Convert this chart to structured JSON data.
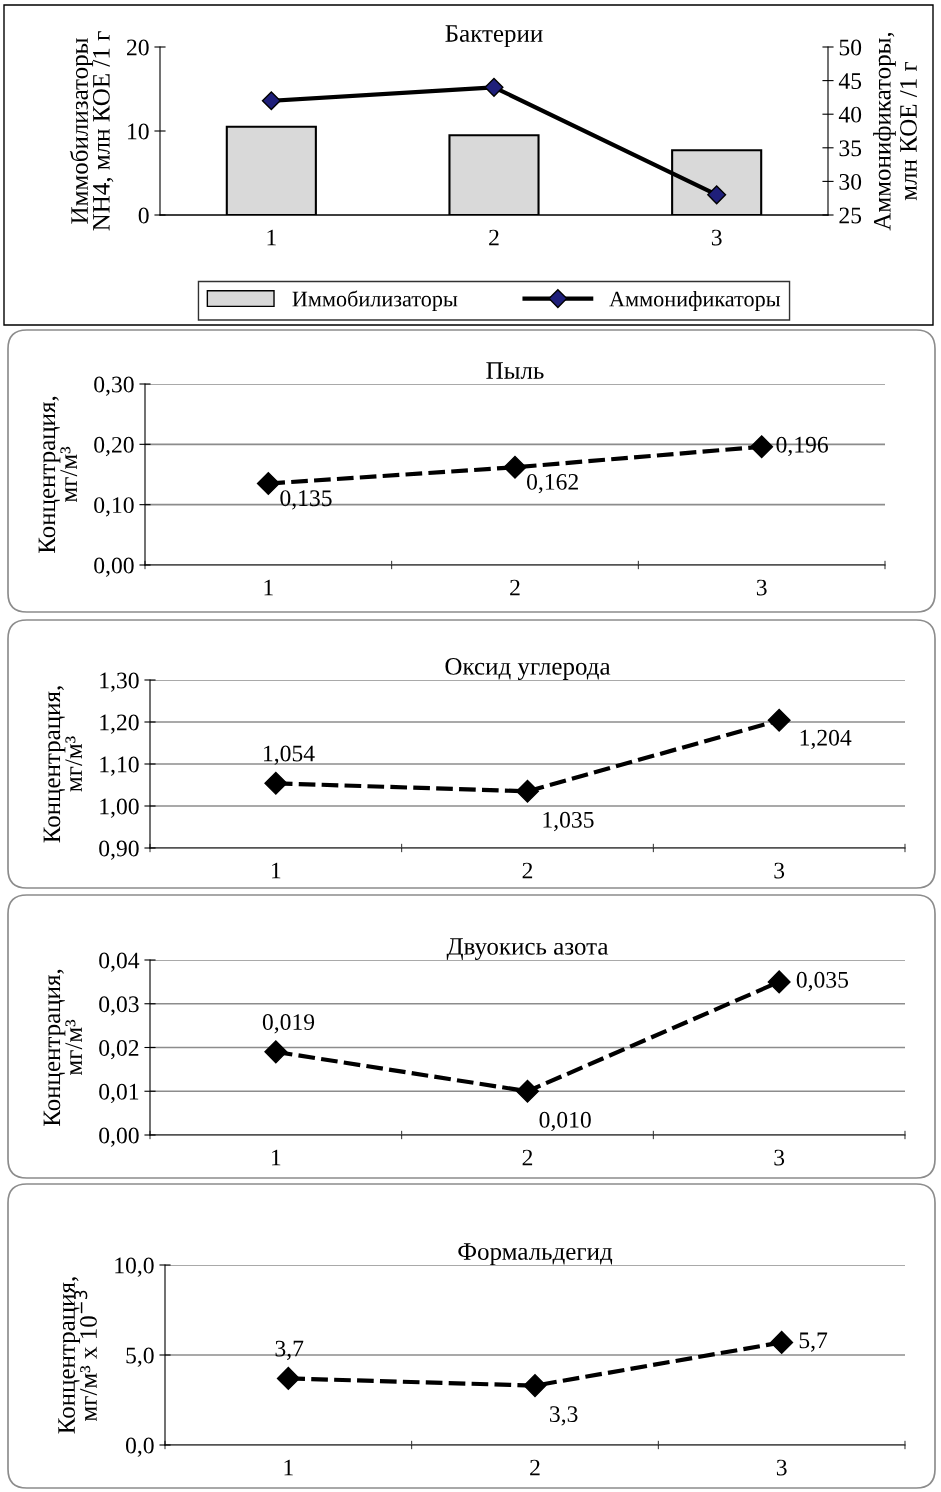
{
  "chart_data": [
    {
      "type": "bar",
      "title": "Бактерии",
      "ylabel": "Иммобилизаторы\nNH4, млн КОЕ /1 г",
      "y2label": "Аммонификаторы,\nмлн КОЕ /1 г",
      "categories": [
        "1",
        "2",
        "3"
      ],
      "series": [
        {
          "name": "Иммобилизаторы",
          "type": "bar",
          "color": "#d9d9d9",
          "values": [
            10.5,
            9.5,
            7.7
          ]
        },
        {
          "name": "Аммонификаторы",
          "type": "line",
          "axis": "y2",
          "color": "#000000",
          "marker": "diamond",
          "values": [
            42,
            44,
            28
          ]
        }
      ],
      "ylim": [
        0,
        20
      ],
      "yticks": [
        0,
        10,
        20
      ],
      "y2lim": [
        25,
        50
      ],
      "y2ticks": [
        25,
        30,
        35,
        40,
        45,
        50
      ],
      "grid": false,
      "legend": "bottom"
    },
    {
      "type": "line",
      "title": "Пыль",
      "ylabel": "Концентрация,\nмг/м³",
      "categories": [
        "1",
        "2",
        "3"
      ],
      "series": [
        {
          "color": "#000000",
          "values": [
            0.135,
            0.162,
            0.196
          ],
          "value_labels": [
            "0,135",
            "0,162",
            "0,196"
          ]
        }
      ],
      "ylim": [
        0,
        0.3
      ],
      "yticks": [
        {
          "value": 0,
          "label": "0,00"
        },
        {
          "value": 0.1,
          "label": "0,10"
        },
        {
          "value": 0.2,
          "label": "0,20"
        },
        {
          "value": 0.3,
          "label": "0,30"
        }
      ],
      "grid": "y",
      "marker": "diamond",
      "line_style": "dashed"
    },
    {
      "type": "line",
      "title": "Оксид углерода",
      "ylabel": "Концентрация,\nмг/м³",
      "categories": [
        "1",
        "2",
        "3"
      ],
      "series": [
        {
          "color": "#000000",
          "values": [
            1.054,
            1.035,
            1.204
          ],
          "value_labels": [
            "1,054",
            "1,035",
            "1,204"
          ]
        }
      ],
      "ylim": [
        0.9,
        1.3
      ],
      "yticks": [
        {
          "value": 0.9,
          "label": "0,90"
        },
        {
          "value": 1.0,
          "label": "1,00"
        },
        {
          "value": 1.1,
          "label": "1,10"
        },
        {
          "value": 1.2,
          "label": "1,20"
        },
        {
          "value": 1.3,
          "label": "1,30"
        }
      ],
      "grid": "y",
      "marker": "diamond",
      "line_style": "dashed"
    },
    {
      "type": "line",
      "title": "Двуокись азота",
      "ylabel": "Концентрация,\nмг/м³",
      "categories": [
        "1",
        "2",
        "3"
      ],
      "series": [
        {
          "color": "#000000",
          "values": [
            0.019,
            0.01,
            0.035
          ],
          "value_labels": [
            "0,019",
            "0,010",
            "0,035"
          ]
        }
      ],
      "ylim": [
        0,
        0.04
      ],
      "yticks": [
        {
          "value": 0,
          "label": "0,00"
        },
        {
          "value": 0.01,
          "label": "0,01"
        },
        {
          "value": 0.02,
          "label": "0,02"
        },
        {
          "value": 0.03,
          "label": "0,03"
        },
        {
          "value": 0.04,
          "label": "0,04"
        }
      ],
      "grid": "y",
      "marker": "diamond",
      "line_style": "dashed"
    },
    {
      "type": "line",
      "title": "Формальдегид",
      "ylabel": "Концентрация,\nмг/м³ x 10$^{−3}$",
      "categories": [
        "1",
        "2",
        "3"
      ],
      "series": [
        {
          "color": "#000000",
          "values": [
            3.7,
            3.3,
            5.7
          ],
          "value_labels": [
            "3,7",
            "3,3",
            "5,7"
          ]
        }
      ],
      "ylim": [
        0,
        10
      ],
      "yticks": [
        {
          "value": 0,
          "label": "0,0"
        },
        {
          "value": 5,
          "label": "5,0"
        },
        {
          "value": 10,
          "label": "10,0"
        }
      ],
      "grid": "y",
      "marker": "diamond",
      "line_style": "dashed"
    }
  ]
}
